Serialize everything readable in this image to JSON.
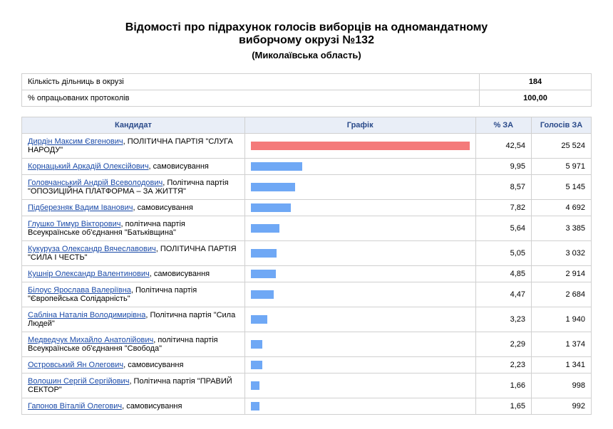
{
  "title_line1": "Відомості про підрахунок голосів виборців на одномандатному",
  "title_line2": "виборчому окрузі №132",
  "subtitle": "(Миколаївська область)",
  "summary": {
    "stations_label": "Кількість дільниць в окрузі",
    "stations_value": "184",
    "processed_label": "% опрацьованих протоколів",
    "processed_value": "100,00"
  },
  "headers": {
    "candidate": "Кандидат",
    "chart": "Графік",
    "pct": "% ЗА",
    "votes": "Голосів ЗА"
  },
  "chart": {
    "winner_color": "#f47a7a",
    "other_color": "#6fa8f5",
    "max_pct": 42.54
  },
  "rows": [
    {
      "name": "Дирдін Максим Євгенович",
      "suffix": ", ПОЛІТИЧНА ПАРТІЯ \"СЛУГА НАРОДУ\"",
      "pct": 42.54,
      "pct_s": "42,54",
      "votes": "25 524"
    },
    {
      "name": "Корнацький Аркадій Олексійович",
      "suffix": ", самовисування",
      "pct": 9.95,
      "pct_s": "9,95",
      "votes": "5 971"
    },
    {
      "name": "Головчанський Андрій Всеволодович",
      "suffix": ", Політична партія \"ОПОЗИЦІЙНА ПЛАТФОРМА – ЗА ЖИТТЯ\"",
      "pct": 8.57,
      "pct_s": "8,57",
      "votes": "5 145"
    },
    {
      "name": "Підберезняк Вадим Іванович",
      "suffix": ", самовисування",
      "pct": 7.82,
      "pct_s": "7,82",
      "votes": "4 692"
    },
    {
      "name": "Глушко Тимур Вікторович",
      "suffix": ", політична партія Всеукраїнське об'єднання \"Батьківщина\"",
      "pct": 5.64,
      "pct_s": "5,64",
      "votes": "3 385"
    },
    {
      "name": "Кукуруза Олександр Вячеславович",
      "suffix": ", ПОЛІТИЧНА ПАРТІЯ \"СИЛА І ЧЕСТЬ\"",
      "pct": 5.05,
      "pct_s": "5,05",
      "votes": "3 032"
    },
    {
      "name": "Кушнір Олександр Валентинович",
      "suffix": ", самовисування",
      "pct": 4.85,
      "pct_s": "4,85",
      "votes": "2 914"
    },
    {
      "name": "Білоус Ярослава Валеріївна",
      "suffix": ", Політична партія \"Європейська Солідарність\"",
      "pct": 4.47,
      "pct_s": "4,47",
      "votes": "2 684"
    },
    {
      "name": "Сабліна Наталія Володимирівна",
      "suffix": ", Політична партія \"Сила Людей\"",
      "pct": 3.23,
      "pct_s": "3,23",
      "votes": "1 940"
    },
    {
      "name": "Медведчук Михайло Анатолійович",
      "suffix": ", політична партія Всеукраїнське об'єднання \"Свобода\"",
      "pct": 2.29,
      "pct_s": "2,29",
      "votes": "1 374"
    },
    {
      "name": "Островський Ян Олегович",
      "suffix": ", самовисування",
      "pct": 2.23,
      "pct_s": "2,23",
      "votes": "1 341"
    },
    {
      "name": "Волошин Сергій Сергійович",
      "suffix": ", Політична партія \"ПРАВИЙ СЕКТОР\"",
      "pct": 1.66,
      "pct_s": "1,66",
      "votes": "998"
    },
    {
      "name": "Гапонов Віталій Олегович",
      "suffix": ", самовисування",
      "pct": 1.65,
      "pct_s": "1,65",
      "votes": "992"
    }
  ]
}
